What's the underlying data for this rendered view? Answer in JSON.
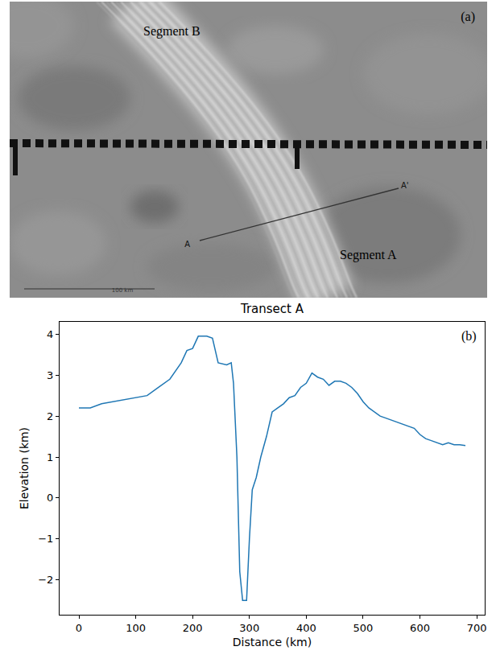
{
  "image_panel": {
    "label": "(a)",
    "regions": [
      "Segment B",
      "Segment A"
    ],
    "transect": {
      "start": "A",
      "end": "A'"
    },
    "scale_bar": "100 km"
  },
  "chart_data": {
    "type": "line",
    "title": "Transect A",
    "x_label": "Distance (km)",
    "y_label": "Elevation (km)",
    "annotations": [
      {
        "text": "(b)"
      }
    ],
    "color": "#1f77b4",
    "grid": false,
    "x": [
      0,
      10,
      20,
      40,
      60,
      80,
      100,
      120,
      140,
      160,
      180,
      190,
      200,
      210,
      225,
      235,
      245,
      260,
      268,
      272,
      278,
      283,
      288,
      295,
      300,
      305,
      312,
      320,
      330,
      340,
      350,
      360,
      370,
      380,
      390,
      400,
      410,
      420,
      430,
      440,
      450,
      460,
      470,
      480,
      490,
      500,
      510,
      520,
      530,
      540,
      550,
      560,
      570,
      580,
      590,
      600,
      610,
      620,
      630,
      640,
      650,
      660,
      670,
      680
    ],
    "values": [
      2.2,
      2.2,
      2.2,
      2.3,
      2.35,
      2.4,
      2.45,
      2.5,
      2.7,
      2.9,
      3.3,
      3.6,
      3.65,
      3.95,
      3.95,
      3.9,
      3.3,
      3.25,
      3.3,
      2.8,
      1.0,
      -1.8,
      -2.5,
      -2.5,
      -1.0,
      0.2,
      0.5,
      1.0,
      1.5,
      2.1,
      2.2,
      2.3,
      2.45,
      2.5,
      2.7,
      2.8,
      3.05,
      2.95,
      2.9,
      2.75,
      2.85,
      2.85,
      2.8,
      2.7,
      2.55,
      2.35,
      2.2,
      2.1,
      2.0,
      1.95,
      1.9,
      1.85,
      1.8,
      1.75,
      1.7,
      1.55,
      1.45,
      1.4,
      1.35,
      1.3,
      1.35,
      1.3,
      1.3,
      1.28
    ],
    "xlim": [
      -34,
      714
    ],
    "xticks": [
      0,
      100,
      200,
      300,
      400,
      500,
      600,
      700
    ],
    "ylim": [
      -2.85,
      4.3
    ],
    "yticks": [
      -2,
      -1,
      0,
      1,
      2,
      3,
      4
    ]
  }
}
